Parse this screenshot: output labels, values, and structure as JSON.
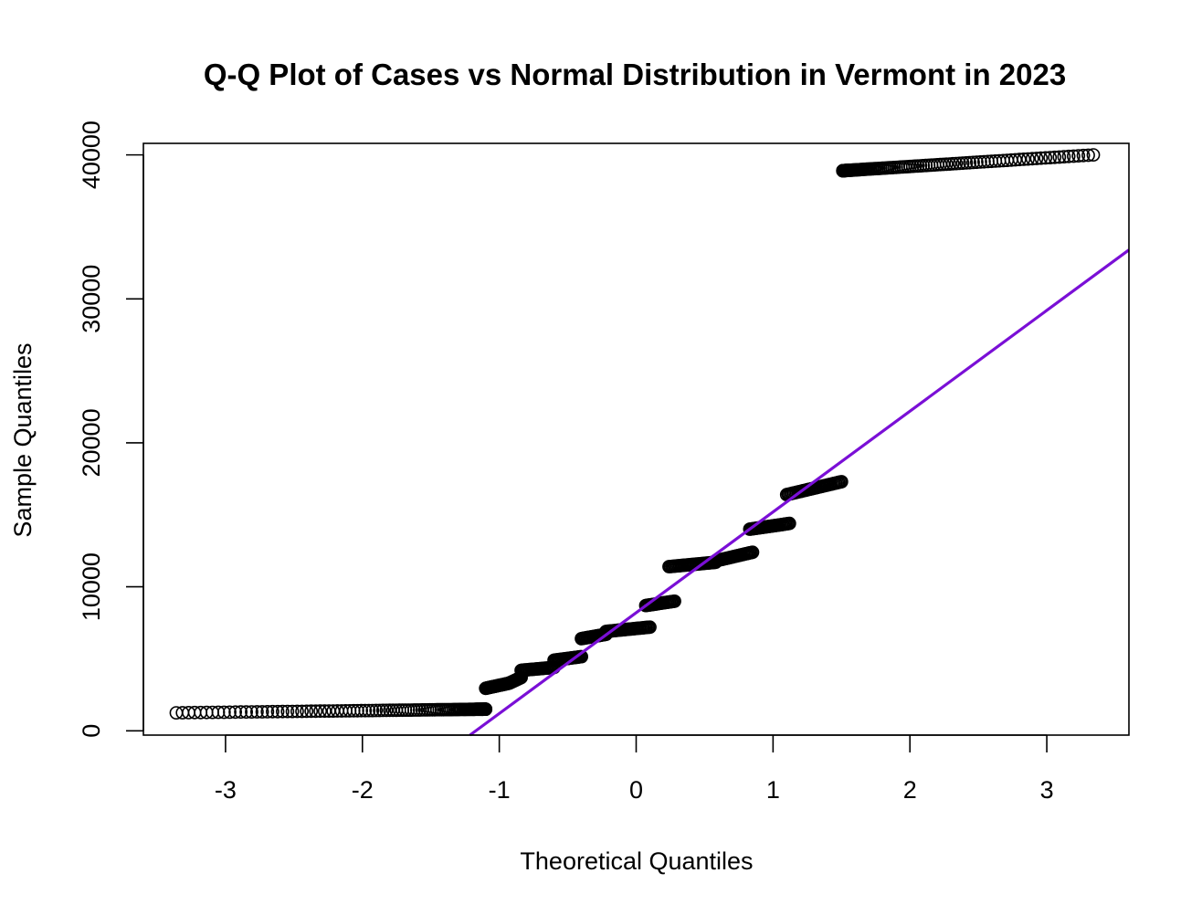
{
  "chart_data": {
    "type": "scatter",
    "title": "Q-Q Plot of Cases vs Normal Distribution in Vermont in 2023",
    "xlabel": "Theoretical Quantiles",
    "ylabel": "Sample Quantiles",
    "xlim": [
      -3.6,
      3.6
    ],
    "ylim": [
      -300,
      40800
    ],
    "x_ticks": [
      -3,
      -2,
      -1,
      0,
      1,
      2,
      3
    ],
    "y_ticks": [
      0,
      10000,
      20000,
      30000,
      40000
    ],
    "grid": false,
    "point_color": "#000000",
    "line_color": "#7a0fd6",
    "reference_line": {
      "slope": 7000,
      "intercept": 8200
    },
    "segments": [
      {
        "x_start": -1.1,
        "x_end": -3.36,
        "y_start": 1500,
        "y_end": 1250,
        "count": 110,
        "tail": "left"
      },
      {
        "x_start": -1.1,
        "x_end": -0.93,
        "y_start": 2950,
        "y_end": 3300,
        "count": 30
      },
      {
        "x_start": -0.93,
        "x_end": -0.84,
        "y_start": 3300,
        "y_end": 3700,
        "count": 18
      },
      {
        "x_start": -0.84,
        "x_end": -0.6,
        "y_start": 4200,
        "y_end": 4400,
        "count": 28
      },
      {
        "x_start": -0.6,
        "x_end": -0.4,
        "y_start": 4900,
        "y_end": 5150,
        "count": 24
      },
      {
        "x_start": -0.4,
        "x_end": -0.22,
        "y_start": 6400,
        "y_end": 6700,
        "count": 22
      },
      {
        "x_start": -0.22,
        "x_end": 0.1,
        "y_start": 6900,
        "y_end": 7200,
        "count": 34
      },
      {
        "x_start": 0.07,
        "x_end": 0.28,
        "y_start": 8700,
        "y_end": 9000,
        "count": 24
      },
      {
        "x_start": 0.24,
        "x_end": 0.58,
        "y_start": 11400,
        "y_end": 11700,
        "count": 36
      },
      {
        "x_start": 0.58,
        "x_end": 0.85,
        "y_start": 11800,
        "y_end": 12400,
        "count": 30
      },
      {
        "x_start": 0.83,
        "x_end": 1.12,
        "y_start": 14000,
        "y_end": 14400,
        "count": 32
      },
      {
        "x_start": 1.1,
        "x_end": 1.5,
        "y_start": 16400,
        "y_end": 17300,
        "count": 40
      },
      {
        "x_start": 1.51,
        "x_end": 3.34,
        "y_start": 38900,
        "y_end": 40000,
        "count": 110,
        "tail": "right"
      }
    ]
  }
}
